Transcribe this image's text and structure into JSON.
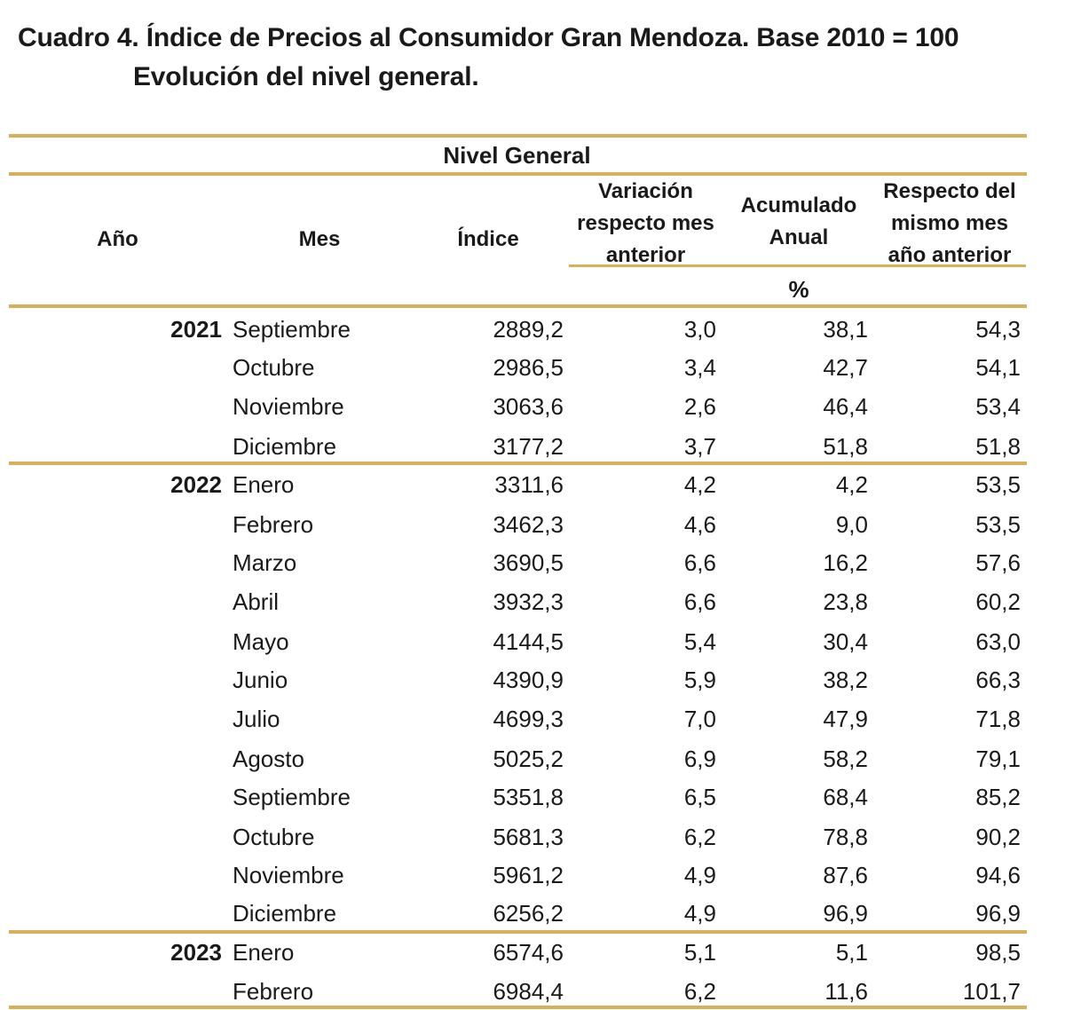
{
  "title": {
    "line1": "Cuadro 4. Índice de Precios al Consumidor Gran Mendoza. Base 2010 = 100",
    "line2": "Evolución del nivel general."
  },
  "table": {
    "group_header": "Nivel General",
    "columns": {
      "anio": "Año",
      "mes": "Mes",
      "indice": "Índice",
      "variacion": "Variación respecto mes anterior",
      "acumulado": "Acumulado Anual",
      "respecto": "Respecto del mismo mes año anterior"
    },
    "unit": "%",
    "rows": [
      {
        "year": "2021",
        "mes": "Septiembre",
        "indice": "2889,2",
        "variacion": "3,0",
        "acumulado": "38,1",
        "respecto": "54,3"
      },
      {
        "year": "",
        "mes": "Octubre",
        "indice": "2986,5",
        "variacion": "3,4",
        "acumulado": "42,7",
        "respecto": "54,1"
      },
      {
        "year": "",
        "mes": "Noviembre",
        "indice": "3063,6",
        "variacion": "2,6",
        "acumulado": "46,4",
        "respecto": "53,4"
      },
      {
        "year": "",
        "mes": "Diciembre",
        "indice": "3177,2",
        "variacion": "3,7",
        "acumulado": "51,8",
        "respecto": "51,8"
      },
      {
        "year": "2022",
        "mes": "Enero",
        "indice": "3311,6",
        "variacion": "4,2",
        "acumulado": "4,2",
        "respecto": "53,5"
      },
      {
        "year": "",
        "mes": "Febrero",
        "indice": "3462,3",
        "variacion": "4,6",
        "acumulado": "9,0",
        "respecto": "53,5"
      },
      {
        "year": "",
        "mes": "Marzo",
        "indice": "3690,5",
        "variacion": "6,6",
        "acumulado": "16,2",
        "respecto": "57,6"
      },
      {
        "year": "",
        "mes": "Abril",
        "indice": "3932,3",
        "variacion": "6,6",
        "acumulado": "23,8",
        "respecto": "60,2"
      },
      {
        "year": "",
        "mes": "Mayo",
        "indice": "4144,5",
        "variacion": "5,4",
        "acumulado": "30,4",
        "respecto": "63,0"
      },
      {
        "year": "",
        "mes": "Junio",
        "indice": "4390,9",
        "variacion": "5,9",
        "acumulado": "38,2",
        "respecto": "66,3"
      },
      {
        "year": "",
        "mes": "Julio",
        "indice": "4699,3",
        "variacion": "7,0",
        "acumulado": "47,9",
        "respecto": "71,8"
      },
      {
        "year": "",
        "mes": "Agosto",
        "indice": "5025,2",
        "variacion": "6,9",
        "acumulado": "58,2",
        "respecto": "79,1"
      },
      {
        "year": "",
        "mes": "Septiembre",
        "indice": "5351,8",
        "variacion": "6,5",
        "acumulado": "68,4",
        "respecto": "85,2"
      },
      {
        "year": "",
        "mes": "Octubre",
        "indice": "5681,3",
        "variacion": "6,2",
        "acumulado": "78,8",
        "respecto": "90,2"
      },
      {
        "year": "",
        "mes": "Noviembre",
        "indice": "5961,2",
        "variacion": "4,9",
        "acumulado": "87,6",
        "respecto": "94,6"
      },
      {
        "year": "",
        "mes": "Diciembre",
        "indice": "6256,2",
        "variacion": "4,9",
        "acumulado": "96,9",
        "respecto": "96,9"
      },
      {
        "year": "2023",
        "mes": "Enero",
        "indice": "6574,6",
        "variacion": "5,1",
        "acumulado": "5,1",
        "respecto": "98,5"
      },
      {
        "year": "",
        "mes": "Febrero",
        "indice": "6984,4",
        "variacion": "6,2",
        "acumulado": "11,6",
        "respecto": "101,7"
      }
    ]
  },
  "colors": {
    "rule": "#d8b05a",
    "text": "#1a1a1a"
  }
}
